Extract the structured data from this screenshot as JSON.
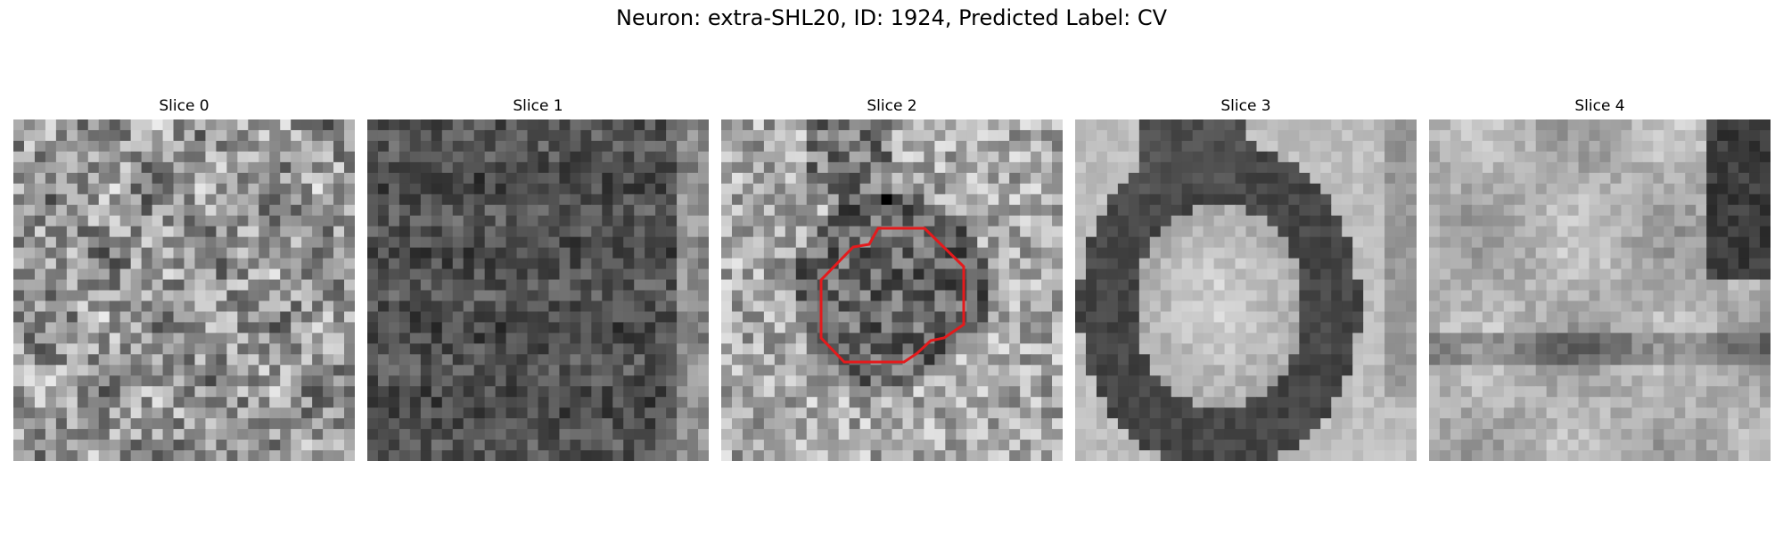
{
  "figure": {
    "title": "Neuron: extra-SHL20, ID: 1924, Predicted Label: CV"
  },
  "slices": [
    {
      "title": "Slice 0",
      "pattern": "noise-mid",
      "has_outline": false
    },
    {
      "title": "Slice 1",
      "pattern": "noise-dark",
      "has_outline": false
    },
    {
      "title": "Slice 2",
      "pattern": "noise-light-center-dark",
      "has_outline": true
    },
    {
      "title": "Slice 3",
      "pattern": "ring",
      "has_outline": false
    },
    {
      "title": "Slice 4",
      "pattern": "smooth-blobs",
      "has_outline": false
    }
  ],
  "outline_color": "#e41a1c"
}
